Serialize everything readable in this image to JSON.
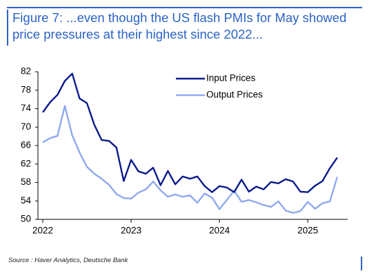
{
  "chart_data": {
    "type": "line",
    "title": "Figure 7: ...even though the US flash PMIs for May showed price pressures at their highest since 2022...",
    "source": "Source : Haver Analytics, Deutsche Bank",
    "categories": [
      "2022",
      null,
      null,
      null,
      null,
      null,
      null,
      null,
      null,
      null,
      null,
      null,
      "2023",
      null,
      null,
      null,
      null,
      null,
      null,
      null,
      null,
      null,
      null,
      null,
      "2024",
      null,
      null,
      null,
      null,
      null,
      null,
      null,
      null,
      null,
      null,
      null,
      "2025",
      null,
      null,
      null,
      null
    ],
    "series": [
      {
        "name": "Input Prices",
        "color": "#0a1a8c",
        "values": [
          73.2,
          75.4,
          77.0,
          80.0,
          81.6,
          76.2,
          75.2,
          70.5,
          67.2,
          67.0,
          65.6,
          58.3,
          62.9,
          60.4,
          59.9,
          61.2,
          57.4,
          60.5,
          57.6,
          59.3,
          58.8,
          59.3,
          57.2,
          55.9,
          57.2,
          56.9,
          55.9,
          58.6,
          56.0,
          57.1,
          56.5,
          58.1,
          57.8,
          58.7,
          58.2,
          56.0,
          55.9,
          57.3,
          58.3,
          61.1,
          63.4
        ]
      },
      {
        "name": "Output Prices",
        "color": "#8ea9f0",
        "values": [
          66.7,
          67.6,
          68.1,
          74.6,
          68.2,
          64.5,
          61.4,
          59.9,
          58.8,
          57.5,
          55.5,
          54.6,
          54.5,
          55.8,
          56.5,
          58.2,
          56.3,
          54.9,
          55.4,
          54.9,
          55.2,
          53.6,
          55.6,
          54.7,
          52.2,
          54.2,
          56.2,
          53.8,
          54.2,
          53.7,
          53.1,
          52.7,
          53.9,
          51.9,
          51.4,
          51.8,
          53.8,
          52.3,
          53.5,
          53.9,
          59.2
        ]
      }
    ],
    "ylim": [
      50,
      82
    ],
    "yticks": [
      50,
      54,
      58,
      62,
      66,
      70,
      74,
      78,
      82
    ],
    "legend": "top-center"
  }
}
